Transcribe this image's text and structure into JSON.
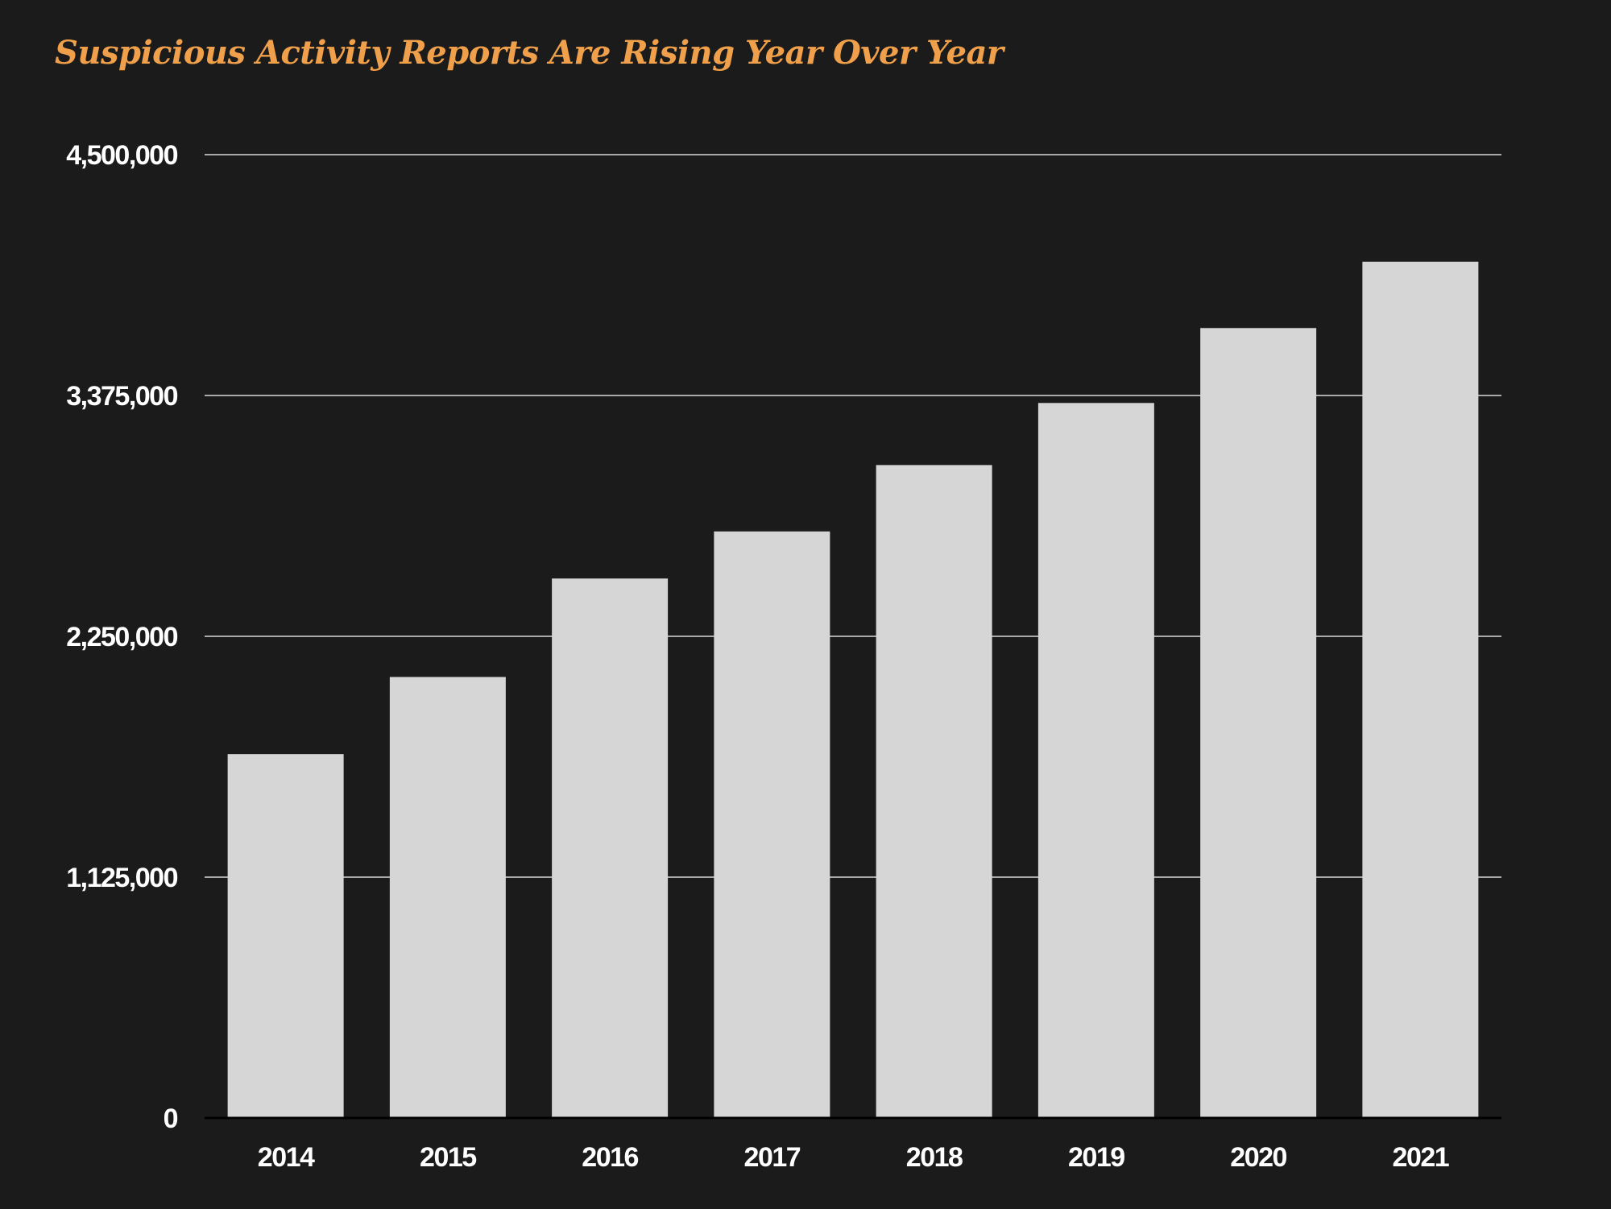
{
  "chart_data": {
    "type": "bar",
    "title": "Suspicious Activity Reports Are Rising Year Over Year",
    "xlabel": "",
    "ylabel": "",
    "categories": [
      "2014",
      "2015",
      "2016",
      "2017",
      "2018",
      "2019",
      "2020",
      "2021"
    ],
    "values": [
      1700000,
      2060000,
      2520000,
      2740000,
      3050000,
      3340000,
      3690000,
      4000000
    ],
    "ylim": [
      0,
      4500000
    ],
    "y_ticks": [
      0,
      1125000,
      2250000,
      3375000,
      4500000
    ],
    "y_tick_labels": [
      "0",
      "1,125,000",
      "2,250,000",
      "3,375,000",
      "4,500,000"
    ],
    "grid": true,
    "legend": "none"
  },
  "colors": {
    "background": "#1a1b1a",
    "title": "#f0a04b",
    "bar": "#d6d6d6",
    "grid": "#a9a9a9",
    "axis": "#000000",
    "tick_label": "#ffffff"
  }
}
